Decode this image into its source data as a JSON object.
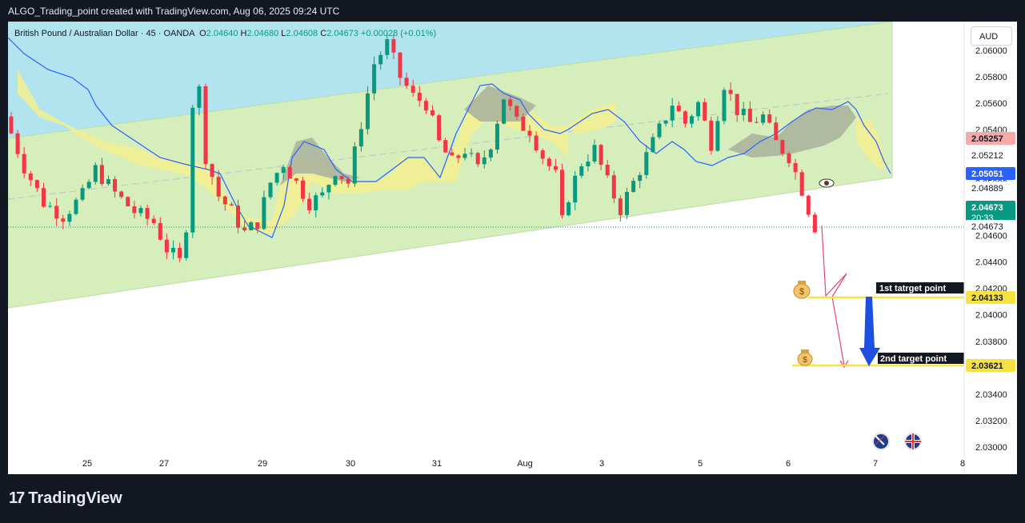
{
  "header": {
    "caption": "ALGO_Trading_point created with TradingView.com, Aug 06, 2025 09:24 UTC"
  },
  "symbol": {
    "name": "British Pound / Australian Dollar · 45 · OANDA",
    "open_label": "O",
    "open": "2.04640",
    "high_label": "H",
    "high": "2.04680",
    "low_label": "L",
    "low": "2.04608",
    "close_label": "C",
    "close": "2.04673",
    "change": "+0.00028 (+0.01%)"
  },
  "currency": "AUD",
  "footer": {
    "brand": "TradingView"
  },
  "colors": {
    "up": "#089981",
    "down": "#f23645",
    "channel": "#d6edbc",
    "cloud_green": "#b9d8a5",
    "cloud_yellow": "#f2ef8f",
    "cloud_grey": "#a8b09c",
    "baseline": "#2962ff",
    "target_line": "#f7e241",
    "arrow": "#1f4fe0",
    "sky": "#b2e4f0"
  },
  "chart_data": {
    "type": "candlestick",
    "y_axis": {
      "ticks": [
        "2.06000",
        "2.05800",
        "2.05600",
        "2.05400",
        "2.05200",
        "2.05000",
        "2.04800",
        "2.04600",
        "2.04400",
        "2.04200",
        "2.04000",
        "2.03800",
        "2.03600",
        "2.03400",
        "2.03200",
        "2.03000"
      ],
      "range": [
        2.0295,
        2.0615
      ]
    },
    "x_axis": {
      "ticks": [
        "25",
        "27",
        "29",
        "30",
        "31",
        "Aug",
        "3",
        "5",
        "6",
        "7",
        "8"
      ]
    },
    "price_labels": [
      {
        "value": "2.05257",
        "kind": "red"
      },
      {
        "value": "2.05212",
        "kind": "plain"
      },
      {
        "value": "2.05051",
        "kind": "blue"
      },
      {
        "value": "2.04889",
        "kind": "plain"
      },
      {
        "value": "2.04673",
        "kind": "green",
        "sub": "20:33"
      },
      {
        "value": "2.04673",
        "kind": "plain"
      },
      {
        "value": "2.04133",
        "kind": "yellow"
      },
      {
        "value": "2.03621",
        "kind": "yellow"
      }
    ],
    "targets": [
      {
        "label": "1st tatrget point",
        "value": 2.04133
      },
      {
        "label": "2nd target point",
        "value": 2.03621
      }
    ],
    "approx_path": [
      [
        0,
        2.055
      ],
      [
        3,
        2.0512
      ],
      [
        6,
        2.0485
      ],
      [
        9,
        2.0475
      ],
      [
        12,
        2.049
      ],
      [
        14,
        2.051
      ],
      [
        17,
        2.0492
      ],
      [
        20,
        2.0478
      ],
      [
        23,
        2.047
      ],
      [
        25,
        2.045
      ],
      [
        27,
        2.044
      ],
      [
        28,
        2.0468
      ],
      [
        29,
        2.056
      ],
      [
        30,
        2.057
      ],
      [
        31,
        2.052
      ],
      [
        33,
        2.049
      ],
      [
        35,
        2.0478
      ],
      [
        37,
        2.0462
      ],
      [
        39,
        2.047
      ],
      [
        41,
        2.05
      ],
      [
        43,
        2.0515
      ],
      [
        45,
        2.05
      ],
      [
        47,
        2.0485
      ],
      [
        49,
        2.049
      ],
      [
        51,
        2.051
      ],
      [
        53,
        2.05
      ],
      [
        55,
        2.0545
      ],
      [
        57,
        2.059
      ],
      [
        59,
        2.0605
      ],
      [
        61,
        2.058
      ],
      [
        63,
        2.0565
      ],
      [
        65,
        2.056
      ],
      [
        67,
        2.053
      ],
      [
        69,
        2.0515
      ],
      [
        71,
        2.0525
      ],
      [
        73,
        2.051
      ],
      [
        75,
        2.053
      ],
      [
        77,
        2.0565
      ],
      [
        79,
        2.0545
      ],
      [
        81,
        2.054
      ],
      [
        83,
        2.052
      ],
      [
        85,
        2.0505
      ],
      [
        86,
        2.047
      ],
      [
        87,
        2.049
      ],
      [
        89,
        2.0515
      ],
      [
        91,
        2.0525
      ],
      [
        93,
        2.05
      ],
      [
        95,
        2.048
      ],
      [
        97,
        2.05
      ],
      [
        99,
        2.052
      ],
      [
        101,
        2.054
      ],
      [
        103,
        2.056
      ],
      [
        105,
        2.0545
      ],
      [
        107,
        2.056
      ],
      [
        109,
        2.053
      ],
      [
        111,
        2.0575
      ],
      [
        113,
        2.0555
      ],
      [
        115,
        2.0545
      ],
      [
        117,
        2.055
      ],
      [
        119,
        2.053
      ],
      [
        121,
        2.052
      ],
      [
        123,
        2.0495
      ],
      [
        124,
        2.048
      ],
      [
        125,
        2.0467
      ]
    ]
  }
}
